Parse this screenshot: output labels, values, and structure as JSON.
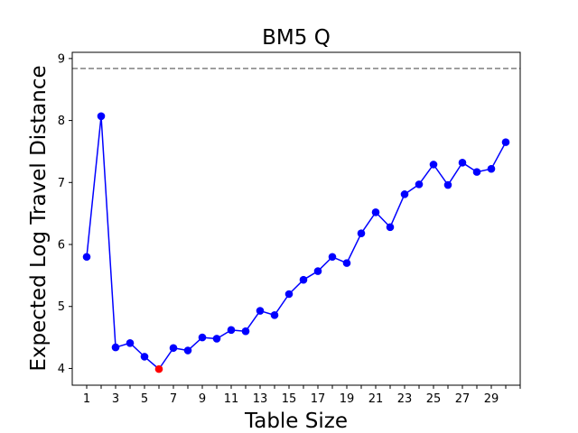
{
  "chart_data": {
    "type": "line",
    "title": "BM5 Q",
    "xlabel": "Table Size",
    "ylabel": "Expected Log Travel Distance",
    "xlim": [
      0,
      31
    ],
    "ylim": [
      3.73,
      9.1
    ],
    "x_ticks": [
      1,
      3,
      5,
      7,
      9,
      11,
      13,
      15,
      17,
      19,
      21,
      23,
      25,
      27,
      29
    ],
    "y_ticks": [
      4,
      5,
      6,
      7,
      8,
      9
    ],
    "grid": false,
    "legend": "none",
    "series": [
      {
        "color": "#0000ff",
        "marker": "circle",
        "x": [
          1,
          2,
          3,
          4,
          5,
          6,
          7,
          8,
          9,
          10,
          11,
          12,
          13,
          14,
          15,
          16,
          17,
          18,
          19,
          20,
          21,
          22,
          23,
          24,
          25,
          26,
          27,
          28,
          29,
          30
        ],
        "y": [
          5.8,
          8.07,
          4.34,
          4.41,
          4.19,
          3.99,
          4.33,
          4.29,
          4.5,
          4.48,
          4.62,
          4.6,
          4.93,
          4.86,
          5.2,
          5.43,
          5.57,
          5.8,
          5.7,
          6.18,
          6.52,
          6.28,
          6.81,
          6.97,
          7.29,
          6.96,
          7.32,
          7.17,
          7.22,
          7.65
        ]
      }
    ],
    "highlight": {
      "x": 6,
      "y": 3.99,
      "color": "#ff0000"
    },
    "reference_line": {
      "y": 8.84,
      "color": "#808080",
      "style": "dashed"
    }
  }
}
